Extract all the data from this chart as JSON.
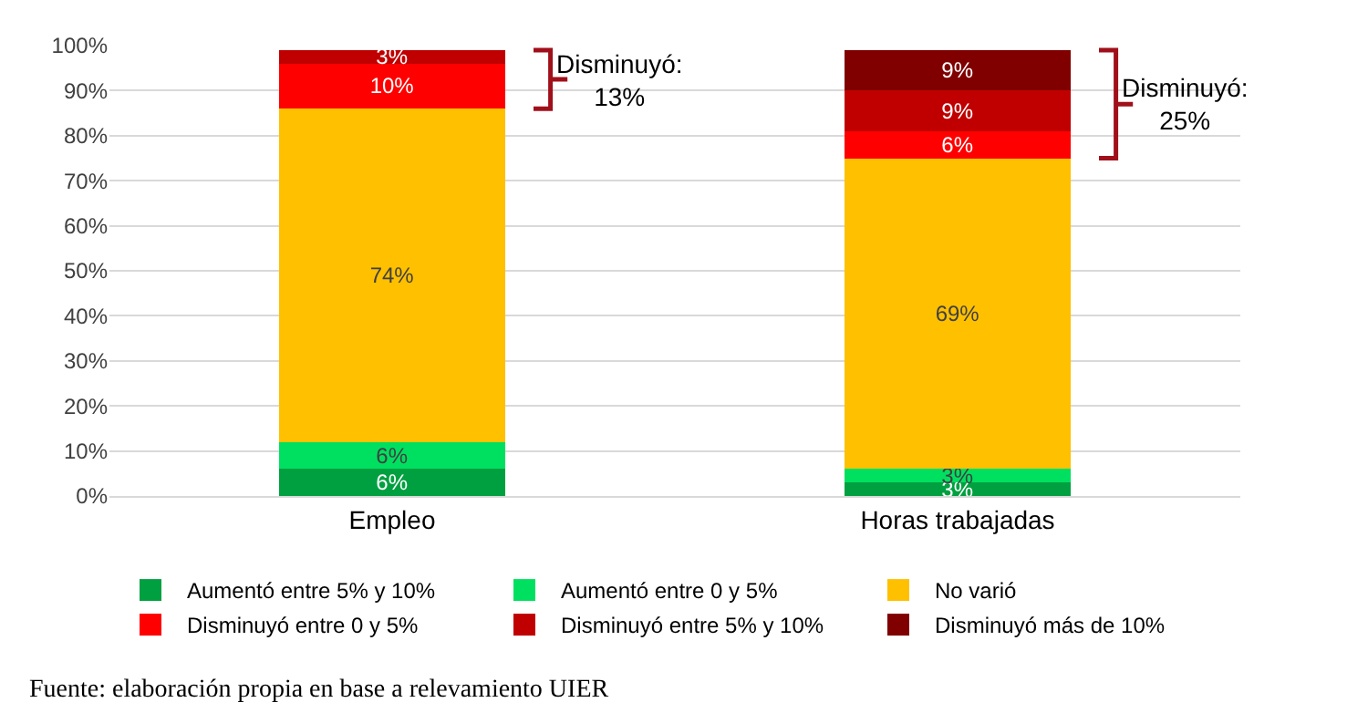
{
  "chart_data": {
    "type": "bar",
    "stacked": true,
    "categories": [
      "Empleo",
      "Horas trabajadas"
    ],
    "series": [
      {
        "name": "Aumentó entre 5% y 10%",
        "color": "#00a040",
        "values": [
          6,
          3
        ],
        "value_labels": [
          "6%",
          "3%"
        ]
      },
      {
        "name": "Aumentó entre 0 y 5%",
        "color": "#00e060",
        "values": [
          6,
          3
        ],
        "value_labels": [
          "6%",
          "3%"
        ]
      },
      {
        "name": "No varió",
        "color": "#ffc000",
        "values": [
          74,
          69
        ],
        "value_labels": [
          "74%",
          "69%"
        ]
      },
      {
        "name": "Disminuyó entre 0 y 5%",
        "color": "#ff0000",
        "values": [
          10,
          6
        ],
        "value_labels": [
          "10%",
          "6%"
        ]
      },
      {
        "name": "Disminuyó entre 5% y 10%",
        "color": "#c00000",
        "values": [
          3,
          9
        ],
        "value_labels": [
          "3%",
          "9%"
        ]
      },
      {
        "name": "Disminuyó más de 10%",
        "color": "#800000",
        "values": [
          null,
          9
        ],
        "value_labels": [
          null,
          "9%"
        ]
      }
    ],
    "ylim": [
      0,
      100
    ],
    "yticks": [
      {
        "value": 0,
        "label": "0%"
      },
      {
        "value": 10,
        "label": "10%"
      },
      {
        "value": 20,
        "label": "20%"
      },
      {
        "value": 30,
        "label": "30%"
      },
      {
        "value": 40,
        "label": "40%"
      },
      {
        "value": 50,
        "label": "50%"
      },
      {
        "value": 60,
        "label": "60%"
      },
      {
        "value": 70,
        "label": "70%"
      },
      {
        "value": 80,
        "label": "80%"
      },
      {
        "value": 90,
        "label": "90%"
      },
      {
        "value": 100,
        "label": "100%"
      }
    ],
    "grid": "y",
    "legend": "bottom",
    "annotations": [
      "Disminuyó:\n13%",
      "Disminuyó:\n25%",
      "Fuente: elaboración propia en base a relevamiento UIER"
    ]
  }
}
